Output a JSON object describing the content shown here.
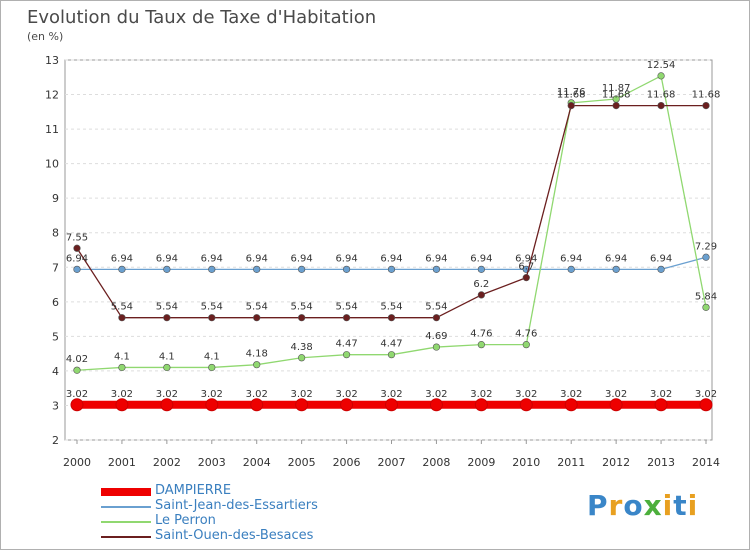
{
  "header": {
    "title": "Evolution du Taux de Taxe d'Habitation",
    "subtitle": "(en %)"
  },
  "brand": {
    "letters": [
      "P",
      "r",
      "o",
      "x",
      "i",
      "t",
      "i"
    ],
    "colors": [
      "#3a86c8",
      "#e8a020",
      "#3a86c8",
      "#4caf3c",
      "#e8a020",
      "#3a86c8",
      "#e8a020"
    ]
  },
  "chart_data": {
    "type": "line",
    "title": "Evolution du Taux de Taxe d'Habitation",
    "subtitle": "(en %)",
    "xlabel": "",
    "ylabel": "",
    "x": [
      2000,
      2001,
      2002,
      2003,
      2004,
      2005,
      2006,
      2007,
      2008,
      2009,
      2010,
      2011,
      2012,
      2013,
      2014
    ],
    "ylim": [
      2,
      13
    ],
    "yticks": [
      2,
      3,
      4,
      5,
      6,
      7,
      8,
      9,
      10,
      11,
      12,
      13
    ],
    "grid": true,
    "legend": "bottom-left",
    "series": [
      {
        "name": "DAMPIERRE",
        "color": "#ee0000",
        "values": [
          3.02,
          3.02,
          3.02,
          3.02,
          3.02,
          3.02,
          3.02,
          3.02,
          3.02,
          3.02,
          3.02,
          3.02,
          3.02,
          3.02,
          3.02
        ],
        "labels": [
          "3.02",
          "3.02",
          "3.02",
          "3.02",
          "3.02",
          "3.02",
          "3.02",
          "3.02",
          "3.02",
          "3.02",
          "3.02",
          "3.02",
          "3.02",
          "3.02",
          "3.02"
        ]
      },
      {
        "name": "Saint-Jean-des-Essartiers",
        "color": "#6aa0d0",
        "values": [
          6.94,
          6.94,
          6.94,
          6.94,
          6.94,
          6.94,
          6.94,
          6.94,
          6.94,
          6.94,
          6.94,
          6.94,
          6.94,
          6.94,
          7.29
        ],
        "labels": [
          "6.94",
          "6.94",
          "6.94",
          "6.94",
          "6.94",
          "6.94",
          "6.94",
          "6.94",
          "6.94",
          "6.94",
          "6.94",
          "6.94",
          "6.94",
          "6.94",
          "7.29"
        ]
      },
      {
        "name": "Le Perron",
        "color": "#90d870",
        "values": [
          4.02,
          4.1,
          4.1,
          4.1,
          4.18,
          4.38,
          4.47,
          4.47,
          4.69,
          4.76,
          4.76,
          11.76,
          11.87,
          12.54,
          5.84
        ],
        "labels": [
          "4.02",
          "4.1",
          "4.1",
          "4.1",
          "4.18",
          "4.38",
          "4.47",
          "4.47",
          "4.69",
          "4.76",
          "4.76",
          "11.76",
          "11.87",
          "12.54",
          "5.84"
        ]
      },
      {
        "name": "Saint-Ouen-des-Besaces",
        "color": "#6b1f1f",
        "values": [
          7.55,
          5.54,
          5.54,
          5.54,
          5.54,
          5.54,
          5.54,
          5.54,
          5.54,
          6.2,
          6.7,
          11.68,
          11.68,
          11.68,
          11.68
        ],
        "labels": [
          "7.55",
          "5.54",
          "5.54",
          "5.54",
          "5.54",
          "5.54",
          "5.54",
          "5.54",
          "5.54",
          "6.2",
          "6.7",
          "11.68",
          "11.68",
          "11.68",
          "11.68"
        ]
      }
    ]
  }
}
